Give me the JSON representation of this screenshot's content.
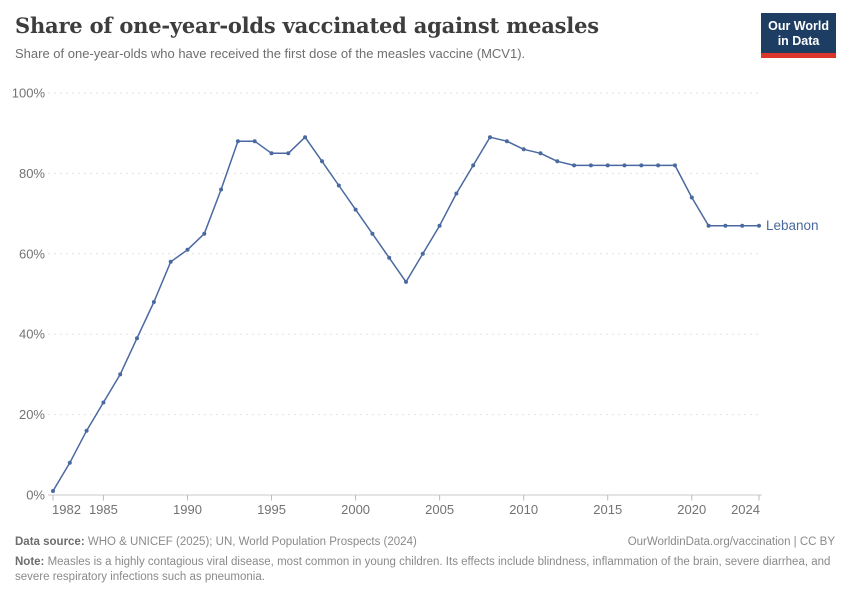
{
  "header": {
    "title": "Share of one-year-olds vaccinated against measles",
    "subtitle": "Share of one-year-olds who have received the first dose of the measles vaccine (MCV1).",
    "logo": {
      "line1": "Our World",
      "line2": "in Data"
    }
  },
  "chart_data": {
    "type": "line",
    "title": "Share of one-year-olds vaccinated against measles",
    "xlabel": "",
    "ylabel": "",
    "unit": "%",
    "grid": true,
    "legend_position": "end-of-line-label",
    "ylim": [
      0,
      100
    ],
    "yticks": [
      0,
      20,
      40,
      60,
      80,
      100
    ],
    "ytick_labels": [
      "0%",
      "20%",
      "40%",
      "60%",
      "80%",
      "100%"
    ],
    "xticks": [
      1982,
      1985,
      1990,
      1995,
      2000,
      2005,
      2010,
      2015,
      2020,
      2024
    ],
    "x": [
      1982,
      1983,
      1984,
      1985,
      1986,
      1987,
      1988,
      1989,
      1990,
      1991,
      1992,
      1993,
      1994,
      1995,
      1996,
      1997,
      1998,
      1999,
      2000,
      2001,
      2002,
      2003,
      2004,
      2005,
      2006,
      2007,
      2008,
      2009,
      2010,
      2011,
      2012,
      2013,
      2014,
      2015,
      2016,
      2017,
      2018,
      2019,
      2020,
      2021,
      2022,
      2023,
      2024
    ],
    "series": [
      {
        "name": "Lebanon",
        "values": [
          1,
          8,
          16,
          23,
          30,
          39,
          48,
          58,
          61,
          65,
          76,
          88,
          88,
          85,
          85,
          89,
          83,
          77,
          71,
          65,
          59,
          53,
          60,
          67,
          75,
          82,
          89,
          88,
          86,
          85,
          83,
          82,
          82,
          82,
          82,
          82,
          82,
          82,
          74,
          67,
          67,
          67,
          67
        ]
      }
    ],
    "entity_label": "Lebanon"
  },
  "footer": {
    "source_label": "Data source:",
    "source_text": " WHO & UNICEF (2025); UN, World Population Prospects (2024)",
    "link_text": "OurWorldinData.org/vaccination",
    "license_text": " | CC BY",
    "note_label": "Note:",
    "note_text": " Measles is a highly contagious viral disease, most common in young children. Its effects include blindness, inflammation of the brain, severe diarrhea, and severe respiratory infections such as pneumonia."
  },
  "colors": {
    "line": "#4a69a0",
    "entity_label": "#4a69a0",
    "grid": "#e2e2e2",
    "axis": "#c8c8c8",
    "tick": "#bbbbbb",
    "tick_text": "#737373",
    "logo_bg": "#1d3d63",
    "logo_red": "#dc352c",
    "title_text": "#3d3d3d"
  }
}
